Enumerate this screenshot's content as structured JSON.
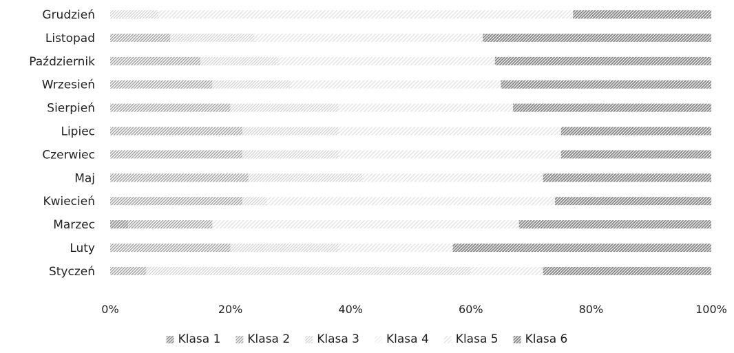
{
  "chart_data": {
    "type": "bar",
    "orientation": "horizontal",
    "stacked": "percent",
    "categories": [
      "Styczeń",
      "Luty",
      "Marzec",
      "Kwiecień",
      "Maj",
      "Czerwiec",
      "Lipiec",
      "Sierpień",
      "Wrzesień",
      "Październik",
      "Listopad",
      "Grudzień"
    ],
    "series": [
      {
        "name": "Klasa 1",
        "values": [
          0,
          0,
          3,
          0,
          0,
          0,
          0,
          0,
          0,
          0,
          0,
          0
        ]
      },
      {
        "name": "Klasa 2",
        "values": [
          6,
          20,
          14,
          22,
          23,
          22,
          22,
          20,
          17,
          15,
          10,
          0
        ]
      },
      {
        "name": "Klasa 3",
        "values": [
          54,
          18,
          0,
          4,
          19,
          16,
          16,
          18,
          13,
          13,
          14,
          8
        ]
      },
      {
        "name": "Klasa 4",
        "values": [
          0,
          0,
          0,
          0,
          0,
          0,
          0,
          0,
          0,
          0,
          0,
          0
        ]
      },
      {
        "name": "Klasa 5",
        "values": [
          12,
          19,
          51,
          48,
          30,
          37,
          37,
          29,
          35,
          36,
          38,
          69
        ]
      },
      {
        "name": "Klasa 6",
        "values": [
          28,
          43,
          32,
          26,
          28,
          25,
          25,
          33,
          35,
          36,
          38,
          23
        ]
      }
    ],
    "x_ticks": [
      "0%",
      "20%",
      "40%",
      "60%",
      "80%",
      "100%"
    ],
    "xlim": [
      0,
      100
    ],
    "xlabel": "",
    "ylabel": "",
    "title": "",
    "grid": false,
    "legend_position": "bottom",
    "colors": {
      "Klasa 1": "#9a9a9a",
      "Klasa 2": "#a6a6a6",
      "Klasa 3": "#cfcfcf",
      "Klasa 4": "#e6e6e6",
      "Klasa 5": "#e1e1e1",
      "Klasa 6": "#8c8c8c"
    }
  }
}
